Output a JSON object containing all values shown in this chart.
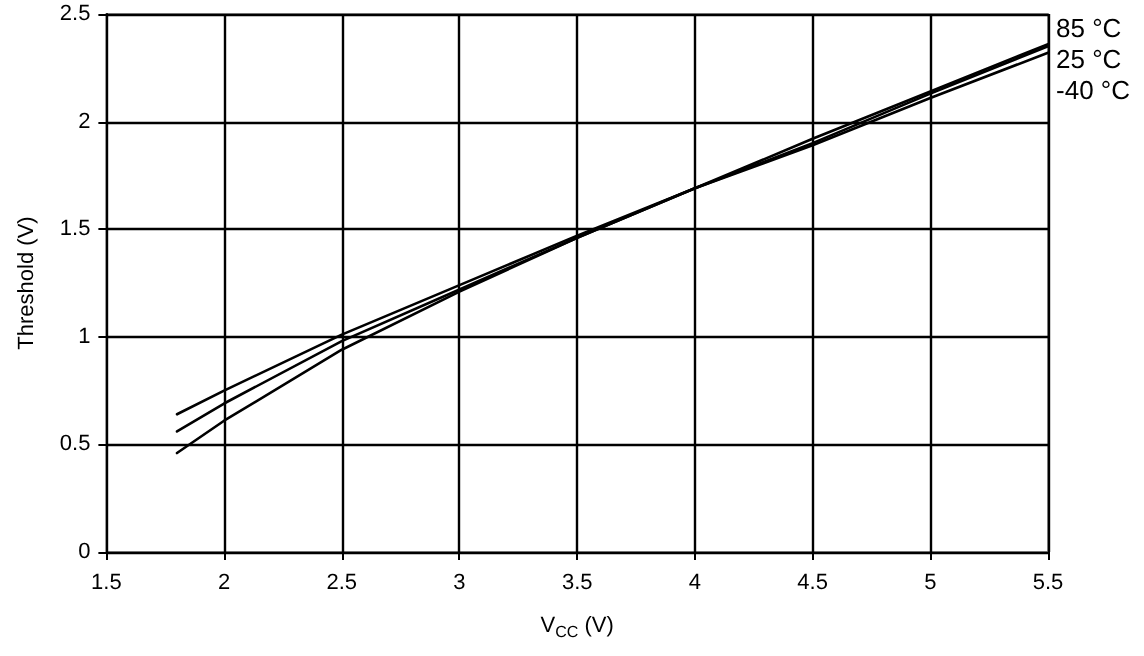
{
  "chart_data": {
    "type": "line",
    "xlabel": "V$_{CC}$ (V)",
    "ylabel": "Threshold (V)",
    "x": [
      1.8,
      2,
      2.5,
      3,
      3.5,
      4,
      4.5,
      5,
      5.5
    ],
    "series": [
      {
        "name": "85 °C",
        "color": "#000000",
        "values": [
          0.46,
          0.61,
          0.94,
          1.21,
          1.46,
          1.69,
          1.92,
          2.14,
          2.36
        ]
      },
      {
        "name": "25 °C",
        "color": "#000000",
        "values": [
          0.56,
          0.69,
          0.98,
          1.22,
          1.46,
          1.69,
          1.9,
          2.13,
          2.35
        ]
      },
      {
        "name": "-40 °C",
        "color": "#000000",
        "values": [
          0.64,
          0.75,
          1.01,
          1.24,
          1.47,
          1.69,
          1.89,
          2.11,
          2.32
        ]
      }
    ],
    "xlim": [
      1.5,
      5.5
    ],
    "xticks": [
      1.5,
      2,
      2.5,
      3,
      3.5,
      4,
      4.5,
      5,
      5.5
    ],
    "ylim": [
      0,
      2.5
    ],
    "yticks": [
      0,
      0.5,
      1,
      1.5,
      2,
      2.5
    ],
    "grid": true,
    "legend": "top right",
    "marker": "none",
    "line_style": "solid"
  }
}
